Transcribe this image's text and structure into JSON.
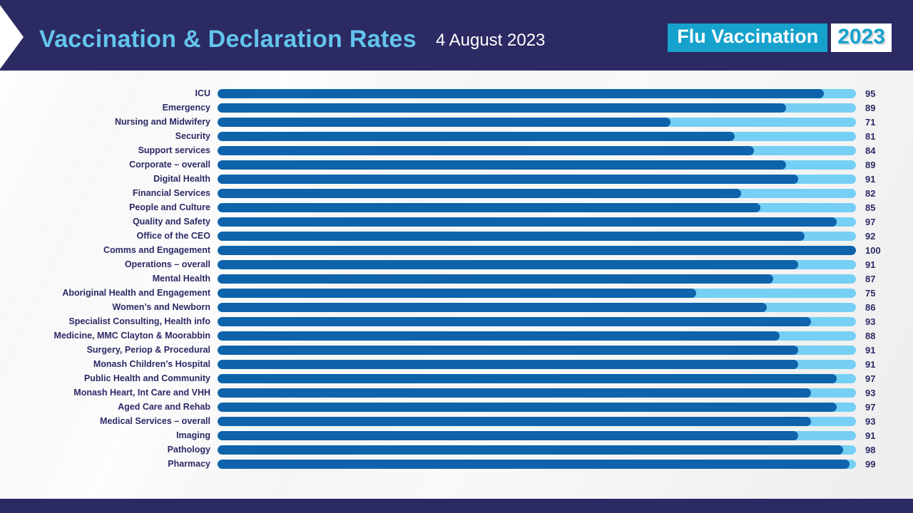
{
  "colors": {
    "navy": "#2b2a63",
    "title_blue": "#63c4ec",
    "cyan": "#16a2cd",
    "bar": "#0e63ab",
    "track": "#76cff4",
    "text": "#2b2a66"
  },
  "header": {
    "title": "Vaccination & Declaration Rates",
    "date": "4 August 2023",
    "badge_primary": "Flu Vaccination",
    "badge_year": "2023"
  },
  "chart_data": {
    "type": "bar",
    "orientation": "horizontal",
    "title": "Vaccination & Declaration Rates",
    "xlabel": "",
    "ylabel": "",
    "xlim": [
      0,
      100
    ],
    "grid": false,
    "legend": false,
    "value_labels_position": "right",
    "categories": [
      "ICU",
      "Emergency",
      "Nursing and Midwifery",
      "Security",
      "Support services",
      "Corporate – overall",
      "Digital Health",
      "Financial Services",
      "People and Culture",
      "Quality and Safety",
      "Office of the CEO",
      "Comms and Engagement",
      "Operations – overall",
      "Mental Health",
      "Aboriginal Health and Engagement",
      "Women’s and Newborn",
      "Specialist Consulting, Health info",
      "Medicine, MMC Clayton & Moorabbin",
      "Surgery, Periop & Procedural",
      "Monash Children’s Hospital",
      "Public Health and Community",
      "Monash Heart, Int Care and VHH",
      "Aged Care and Rehab",
      "Medical Services – overall",
      "Imaging",
      "Pathology",
      "Pharmacy"
    ],
    "values": [
      95,
      89,
      71,
      81,
      84,
      89,
      91,
      82,
      85,
      97,
      92,
      100,
      91,
      87,
      75,
      86,
      93,
      88,
      91,
      91,
      97,
      93,
      97,
      93,
      91,
      98,
      99
    ]
  }
}
